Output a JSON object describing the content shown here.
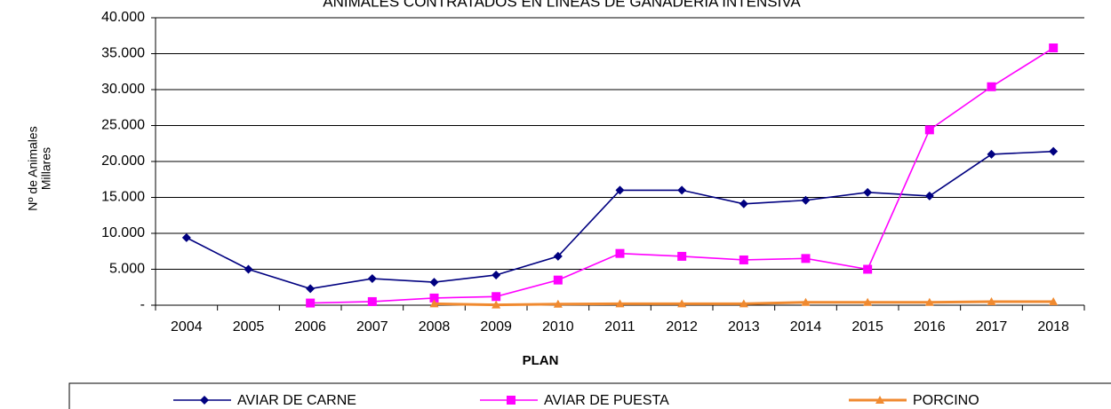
{
  "chart_data": {
    "type": "line",
    "title": "ANIMALES CONTRATADOS EN LÍNEAS DE GANADERÍA INTENSIVA",
    "ylabel": [
      "Nº de Animales",
      "Millares"
    ],
    "xlabel": "PLAN",
    "categories": [
      "2004",
      "2005",
      "2006",
      "2007",
      "2008",
      "2009",
      "2010",
      "2011",
      "2012",
      "2013",
      "2014",
      "2015",
      "2016",
      "2017",
      "2018"
    ],
    "series": [
      {
        "name": "AVIAR DE CARNE",
        "color": "#000080",
        "marker": "diamond",
        "values": [
          9400,
          5000,
          2300,
          3700,
          3200,
          4200,
          6800,
          16000,
          16000,
          14100,
          14600,
          15700,
          15200,
          21000,
          21400
        ]
      },
      {
        "name": "AVIAR DE PUESTA",
        "color": "#ff00ff",
        "marker": "square",
        "values": [
          null,
          null,
          300,
          500,
          1000,
          1200,
          3500,
          7200,
          6800,
          6300,
          6500,
          5000,
          24400,
          30400,
          35800
        ]
      },
      {
        "name": "PORCINO",
        "color": "#f08a30",
        "marker": "triangle",
        "values": [
          null,
          null,
          null,
          null,
          200,
          50,
          150,
          200,
          200,
          200,
          400,
          400,
          400,
          500,
          500
        ]
      }
    ],
    "ylim": [
      0,
      40000
    ],
    "yticks": [
      {
        "value": 0,
        "label": "-"
      },
      {
        "value": 5000,
        "label": "5.000"
      },
      {
        "value": 10000,
        "label": "10.000"
      },
      {
        "value": 15000,
        "label": "15.000"
      },
      {
        "value": 20000,
        "label": "20.000"
      },
      {
        "value": 25000,
        "label": "25.000"
      },
      {
        "value": 30000,
        "label": "30.000"
      },
      {
        "value": 35000,
        "label": "35.000"
      },
      {
        "value": 40000,
        "label": "40.000"
      }
    ],
    "grid": true,
    "legend": "bottom"
  }
}
